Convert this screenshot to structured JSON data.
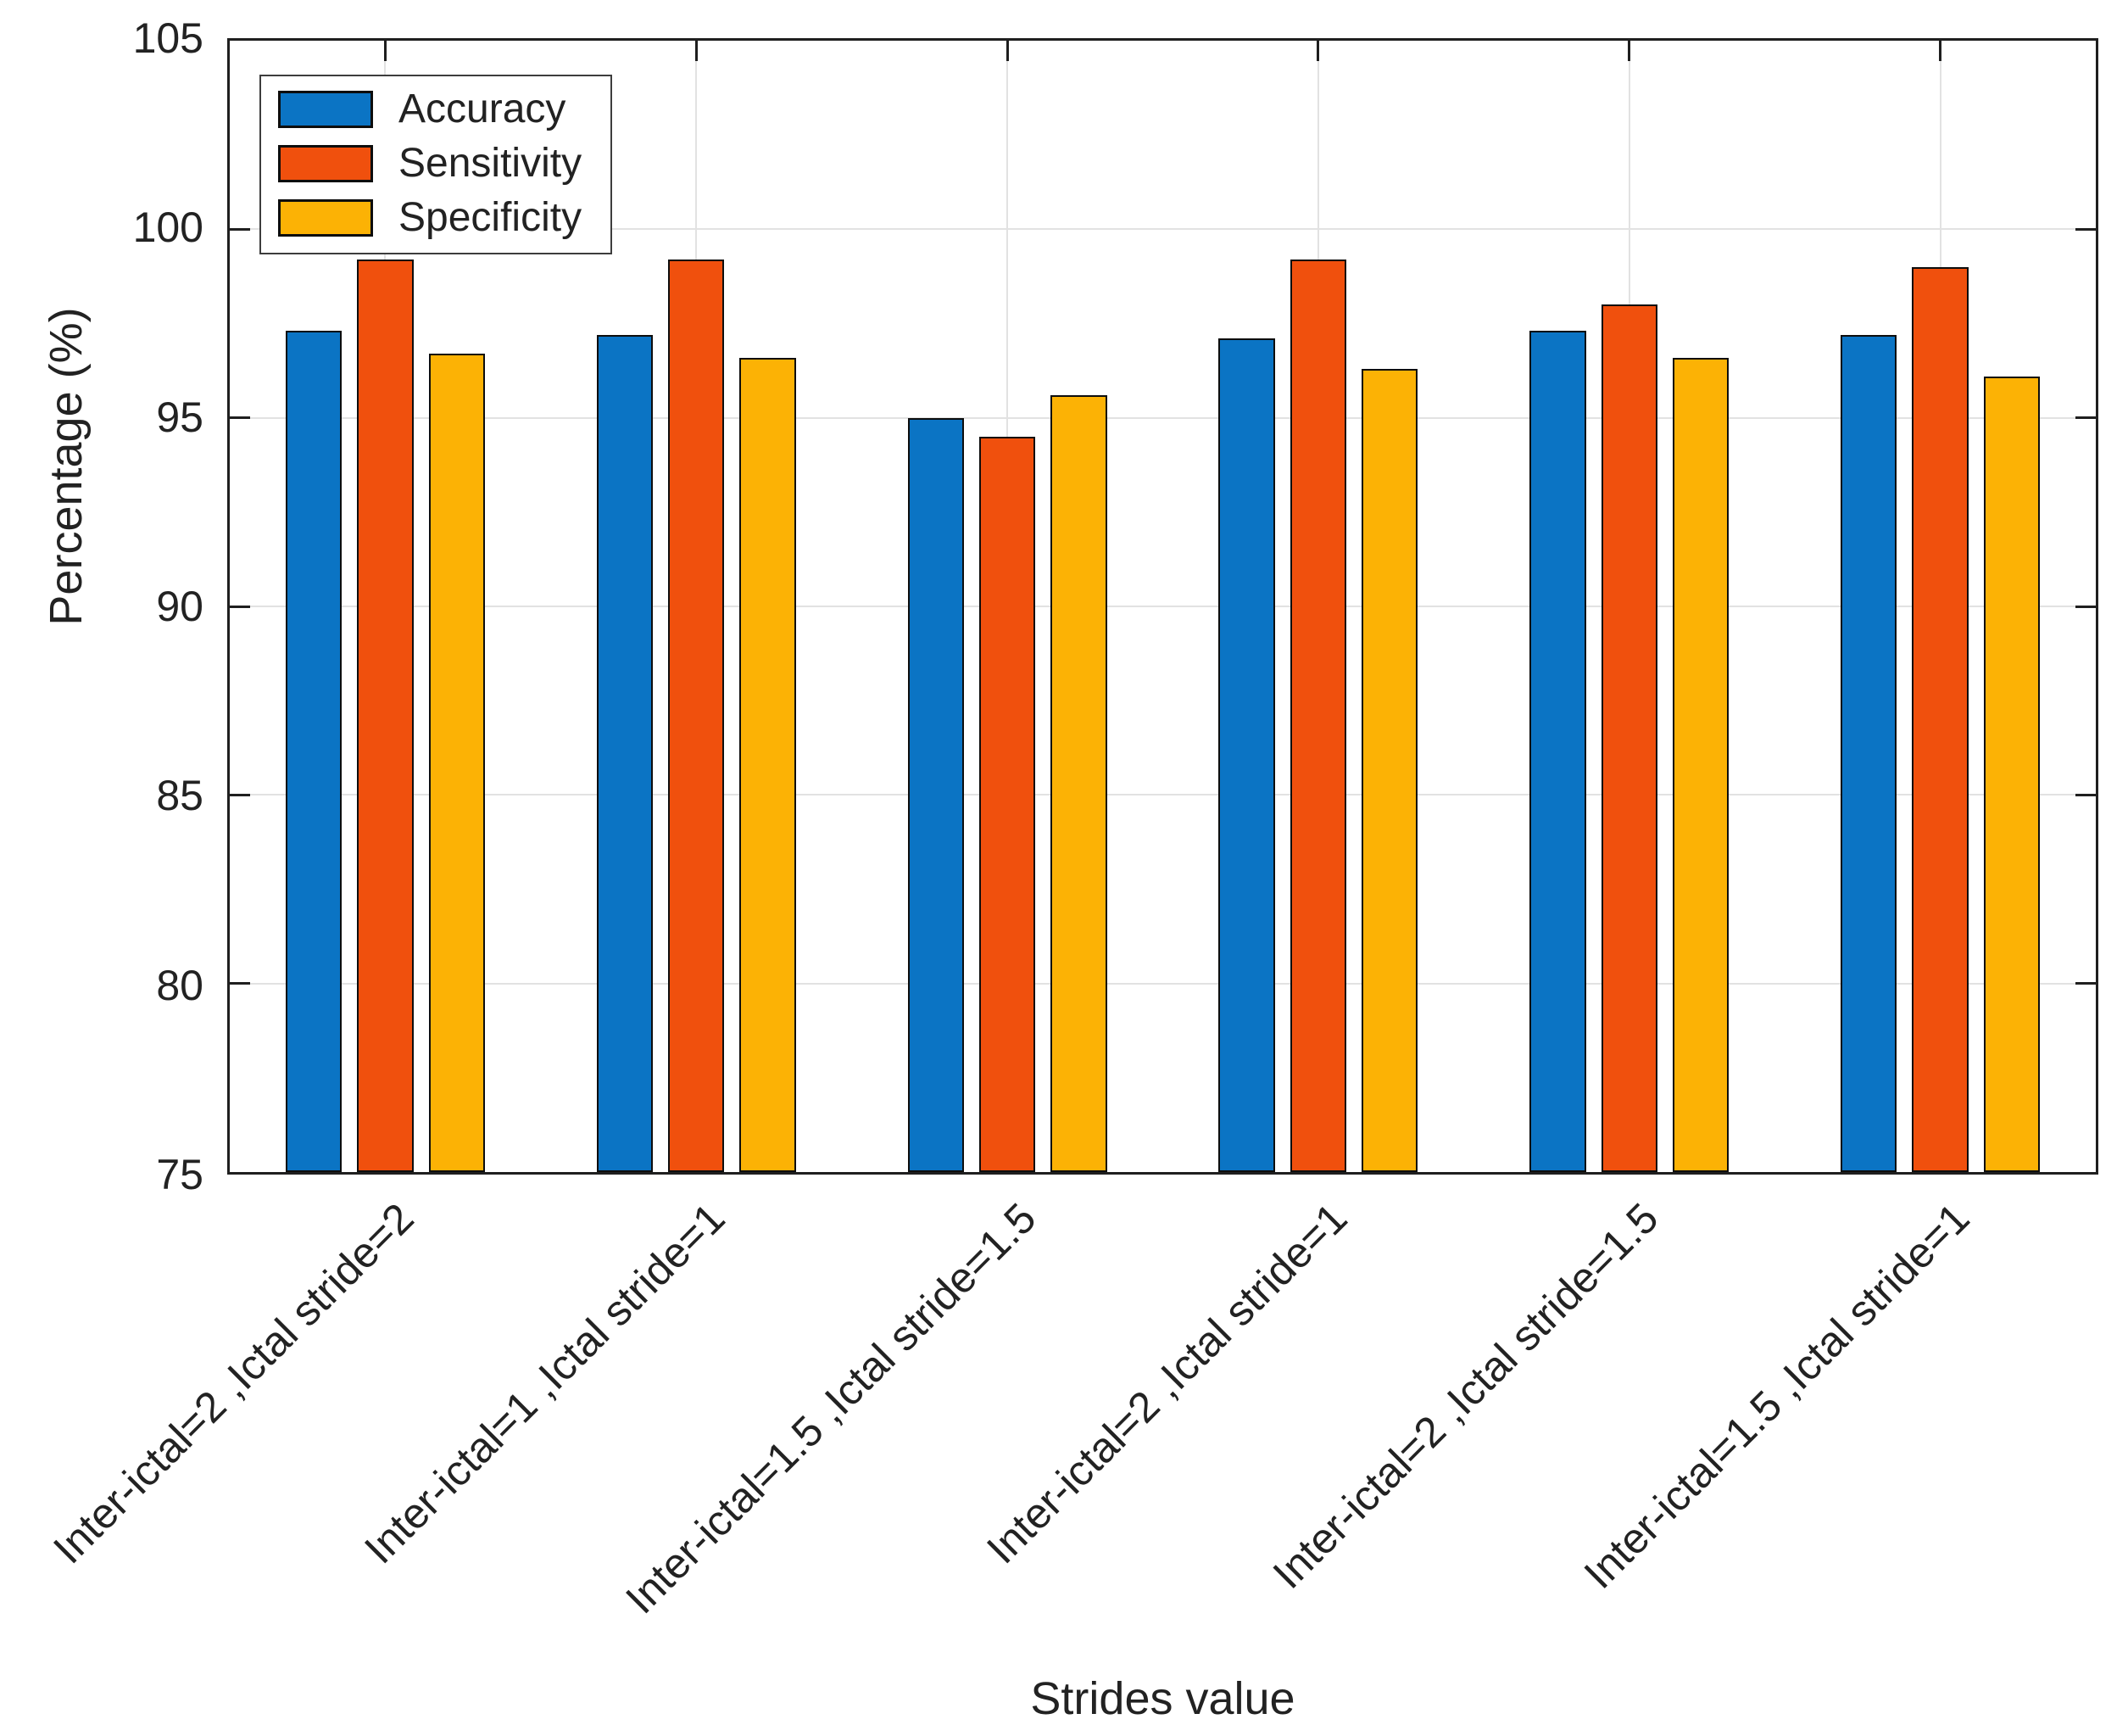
{
  "chart_data": {
    "type": "bar",
    "title": "",
    "xlabel": "Strides value",
    "ylabel": "Percentage (%)",
    "ylim": [
      75,
      105
    ],
    "yticks": [
      75,
      80,
      85,
      90,
      95,
      100,
      105
    ],
    "grid": true,
    "legend_position": "top-left",
    "background_color": "#ffffff",
    "gridline_color": "#e2e2e2",
    "bar_edge_color": "#0d0d0d",
    "categories": [
      "Inter-ictal=2 ,Ictal stride=2",
      "Inter-ictal=1 ,Ictal stride=1",
      "Inter-ictal=1.5 ,Ictal stride=1.5",
      "Inter-ictal=2 ,Ictal stride=1",
      "Inter-ictal=2 ,Ictal stride=1.5",
      "Inter-ictal=1.5 ,Ictal stride=1"
    ],
    "series": [
      {
        "name": "Accuracy",
        "color": "#0b74c4",
        "values": [
          97.3,
          97.2,
          95.0,
          97.1,
          97.3,
          97.2
        ]
      },
      {
        "name": "Sensitivity",
        "color": "#f0500d",
        "values": [
          99.2,
          99.2,
          94.5,
          99.2,
          98.0,
          99.0
        ]
      },
      {
        "name": "Specificity",
        "color": "#fcb205",
        "values": [
          96.7,
          96.6,
          95.6,
          96.3,
          96.6,
          96.1
        ]
      }
    ]
  }
}
